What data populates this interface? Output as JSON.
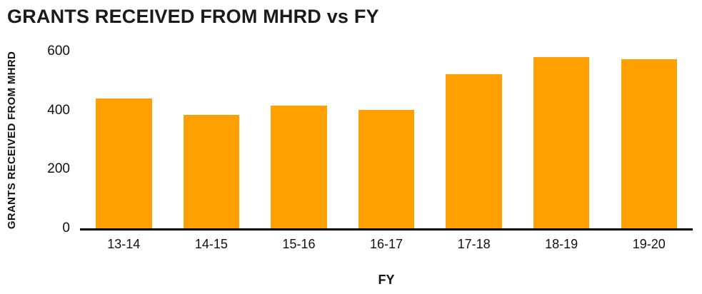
{
  "page": {
    "background": "#ffffff"
  },
  "chart_data": {
    "type": "bar",
    "title": "GRANTS RECEIVED FROM MHRD vs FY",
    "xlabel": "FY",
    "ylabel": "GRANTS RECEIVED FROM MHRD",
    "categories": [
      "13-14",
      "14-15",
      "15-16",
      "16-17",
      "17-18",
      "18-19",
      "19-20"
    ],
    "values": [
      440,
      385,
      415,
      402,
      522,
      580,
      573
    ],
    "ylim": [
      0,
      600
    ],
    "yticks": [
      0,
      200,
      400,
      600
    ],
    "bar_color": "#FFA000",
    "axis_color": "#000000",
    "text_color": "#111111",
    "grid": false,
    "legend": "none"
  }
}
